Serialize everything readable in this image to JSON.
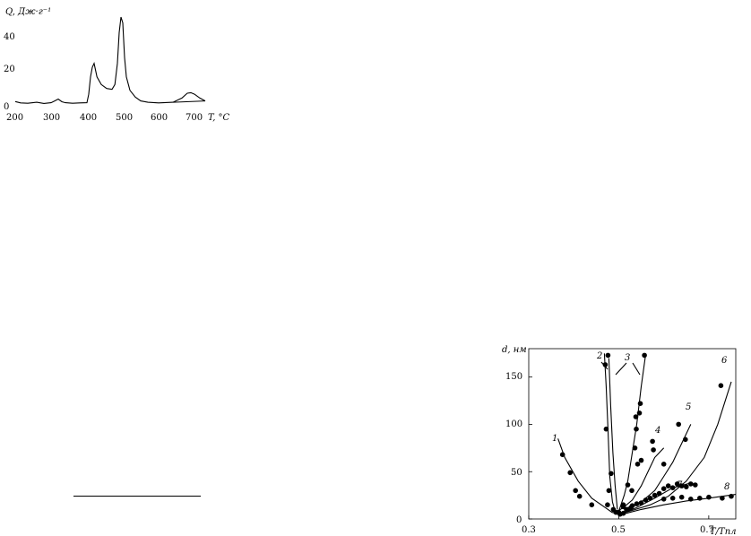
{
  "chart_data": [
    {
      "type": "line",
      "ylabel": "Q, Дж·г⁻¹",
      "xlabel": "T, °C",
      "x_ticks": [
        "200",
        "300",
        "400",
        "500",
        "600",
        "700"
      ],
      "y_ticks": [
        "0",
        "20",
        "40"
      ],
      "xlim": [
        200,
        800
      ],
      "ylim": [
        0,
        50
      ],
      "series": [
        {
          "x": [
            200,
            215,
            235,
            260,
            280,
            300,
            310,
            320,
            330,
            340,
            360,
            380,
            400,
            405,
            410,
            415,
            420,
            428,
            440,
            455,
            470,
            478,
            485,
            490,
            495,
            500,
            505,
            510,
            520,
            535,
            550,
            570,
            600,
            640,
            665,
            680,
            690,
            700,
            715,
            730
          ],
          "y": [
            2.2,
            1.5,
            1.3,
            1.8,
            1.2,
            1.6,
            2.5,
            3.5,
            2.1,
            1.6,
            1.3,
            1.5,
            1.6,
            6,
            15,
            20,
            22,
            15,
            11,
            9,
            8.5,
            11,
            22,
            38,
            46,
            43,
            25,
            15,
            8,
            4.5,
            2.5,
            1.8,
            1.5,
            1.8,
            4,
            6.5,
            6.8,
            6,
            4,
            2.5
          ]
        }
      ]
    },
    {
      "type": "scatter",
      "ylabel": "d, нм",
      "xlabel": "T/Tпл",
      "x_ticks": [
        "0.3",
        "0.5",
        "0.7"
      ],
      "y_ticks": [
        "0",
        "50",
        "100",
        "150"
      ],
      "xlim": [
        0.3,
        0.76
      ],
      "ylim": [
        0,
        180
      ],
      "curves": [
        {
          "label": "1",
          "x": [
            0.365,
            0.38,
            0.41,
            0.44,
            0.47,
            0.485,
            0.5
          ],
          "y": [
            85,
            65,
            40,
            22,
            12,
            7,
            5
          ]
        },
        {
          "label": "2",
          "x": [
            0.468,
            0.472,
            0.476,
            0.48,
            0.486,
            0.492
          ],
          "y": [
            175,
            140,
            95,
            45,
            18,
            8
          ]
        },
        {
          "label": "2",
          "x": [
            0.478,
            0.482,
            0.487,
            0.492,
            0.497
          ],
          "y": [
            170,
            120,
            70,
            35,
            10
          ]
        },
        {
          "label": "3",
          "x": [
            0.5,
            0.505,
            0.512,
            0.52,
            0.53,
            0.54,
            0.55,
            0.56
          ],
          "y": [
            8,
            15,
            25,
            40,
            70,
            100,
            140,
            175
          ]
        },
        {
          "label": "4",
          "x": [
            0.49,
            0.51,
            0.53,
            0.55,
            0.57,
            0.58,
            0.6
          ],
          "y": [
            6,
            12,
            20,
            35,
            55,
            65,
            75
          ]
        },
        {
          "label": "5",
          "x": [
            0.5,
            0.52,
            0.55,
            0.58,
            0.6,
            0.62,
            0.64,
            0.66
          ],
          "y": [
            5,
            10,
            18,
            30,
            45,
            60,
            80,
            100
          ]
        },
        {
          "label": "6",
          "x": [
            0.5,
            0.53,
            0.57,
            0.61,
            0.65,
            0.69,
            0.72,
            0.75
          ],
          "y": [
            5,
            9,
            15,
            24,
            40,
            65,
            100,
            145
          ]
        },
        {
          "label": "7",
          "x": [
            0.5,
            0.54,
            0.58,
            0.62,
            0.66
          ],
          "y": [
            4,
            12,
            22,
            33,
            38
          ]
        },
        {
          "label": "8",
          "x": [
            0.5,
            0.55,
            0.6,
            0.65,
            0.7,
            0.76
          ],
          "y": [
            4,
            10,
            15,
            19,
            22,
            26
          ]
        }
      ],
      "points": [
        [
          0.375,
          68
        ],
        [
          0.392,
          49
        ],
        [
          0.404,
          30
        ],
        [
          0.413,
          24
        ],
        [
          0.44,
          15
        ],
        [
          0.475,
          15
        ],
        [
          0.488,
          10
        ],
        [
          0.494,
          7
        ],
        [
          0.47,
          163
        ],
        [
          0.476,
          173
        ],
        [
          0.472,
          95
        ],
        [
          0.478,
          30
        ],
        [
          0.483,
          48
        ],
        [
          0.538,
          108
        ],
        [
          0.539,
          95
        ],
        [
          0.546,
          112
        ],
        [
          0.548,
          122
        ],
        [
          0.557,
          173
        ],
        [
          0.536,
          75
        ],
        [
          0.542,
          58
        ],
        [
          0.55,
          62
        ],
        [
          0.575,
          82
        ],
        [
          0.577,
          73
        ],
        [
          0.6,
          58
        ],
        [
          0.633,
          100
        ],
        [
          0.648,
          84
        ],
        [
          0.727,
          141
        ],
        [
          0.51,
          13
        ],
        [
          0.52,
          36
        ],
        [
          0.529,
          30
        ],
        [
          0.527,
          12
        ],
        [
          0.51,
          6
        ],
        [
          0.517,
          10
        ],
        [
          0.5,
          7
        ],
        [
          0.503,
          5
        ],
        [
          0.51,
          15
        ],
        [
          0.52,
          10
        ],
        [
          0.53,
          14
        ],
        [
          0.54,
          16
        ],
        [
          0.55,
          17
        ],
        [
          0.56,
          20
        ],
        [
          0.57,
          22
        ],
        [
          0.58,
          25
        ],
        [
          0.59,
          27
        ],
        [
          0.6,
          32
        ],
        [
          0.61,
          35
        ],
        [
          0.62,
          33
        ],
        [
          0.63,
          37
        ],
        [
          0.64,
          35
        ],
        [
          0.65,
          34
        ],
        [
          0.66,
          37
        ],
        [
          0.67,
          36
        ],
        [
          0.6,
          21
        ],
        [
          0.62,
          22
        ],
        [
          0.64,
          23
        ],
        [
          0.66,
          21
        ],
        [
          0.68,
          22
        ],
        [
          0.7,
          23
        ],
        [
          0.73,
          22
        ],
        [
          0.75,
          24
        ]
      ]
    }
  ]
}
